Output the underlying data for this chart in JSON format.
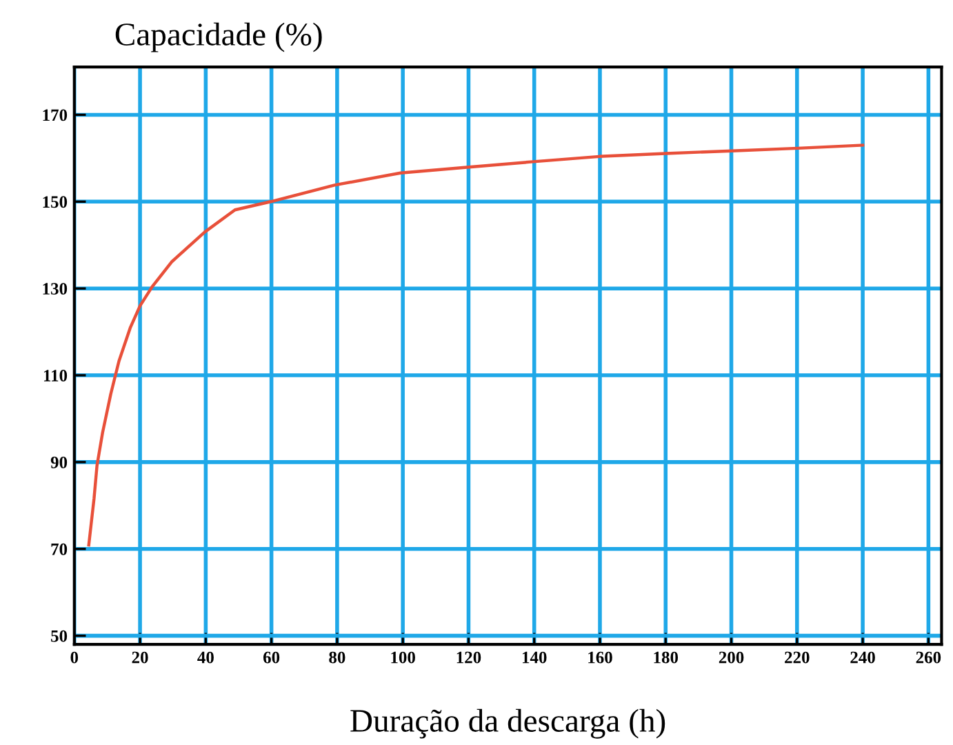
{
  "chart_data": {
    "type": "line",
    "title": "Capacidade (%)",
    "xlabel": "Duração da descarga (h)",
    "x": [
      4.4,
      6,
      6.9,
      8.6,
      11.1,
      13.6,
      17,
      20,
      23.7,
      29.6,
      39.7,
      48.9,
      59.8,
      79.2,
      99.3,
      119.5,
      139.7,
      159.8,
      180,
      200.2,
      220.3,
      240
    ],
    "series": [
      {
        "color": "#e8503a",
        "values": [
          70.9,
          81.6,
          89.2,
          96.8,
          105.7,
          113.3,
          120.9,
          126,
          130.4,
          136.1,
          143,
          148.1,
          150,
          153.8,
          156.6,
          157.9,
          159.2,
          160.4,
          161.1,
          161.7,
          162.3,
          163
        ]
      }
    ],
    "xlim": [
      0,
      264
    ],
    "ylim": [
      48,
      181
    ],
    "xticks": [
      0,
      20,
      40,
      60,
      80,
      100,
      120,
      140,
      160,
      180,
      200,
      220,
      240,
      260
    ],
    "yticks": [
      50,
      70,
      90,
      110,
      130,
      150,
      170
    ],
    "grid": true,
    "marker": "none",
    "line_style": "solid"
  }
}
